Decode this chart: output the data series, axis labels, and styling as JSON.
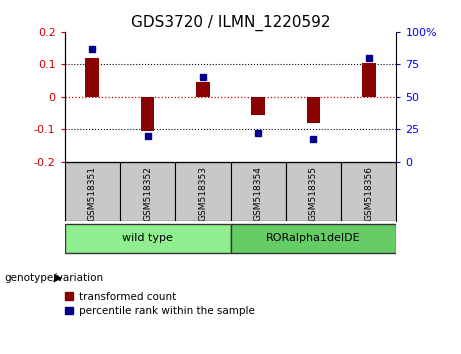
{
  "title": "GDS3720 / ILMN_1220592",
  "samples": [
    "GSM518351",
    "GSM518352",
    "GSM518353",
    "GSM518354",
    "GSM518355",
    "GSM518356"
  ],
  "bar_values": [
    0.12,
    -0.105,
    0.045,
    -0.055,
    -0.08,
    0.105
  ],
  "dot_values": [
    87,
    20,
    65,
    22,
    18,
    80
  ],
  "bar_color": "#8B0000",
  "dot_color": "#00008B",
  "ylim_left": [
    -0.2,
    0.2
  ],
  "ylim_right": [
    0,
    100
  ],
  "yticks_left": [
    -0.2,
    -0.1,
    0.0,
    0.1,
    0.2
  ],
  "yticks_right": [
    0,
    25,
    50,
    75,
    100
  ],
  "yticklabels_right": [
    "0",
    "25",
    "50",
    "75",
    "100%"
  ],
  "zero_line_color": "#CC0000",
  "dotted_line_color": "black",
  "groups": [
    {
      "label": "wild type",
      "indices": [
        0,
        1,
        2
      ],
      "color": "#90EE90"
    },
    {
      "label": "RORalpha1delDE",
      "indices": [
        3,
        4,
        5
      ],
      "color": "#66CC66"
    }
  ],
  "group_label": "genotype/variation",
  "legend_bar_label": "transformed count",
  "legend_dot_label": "percentile rank within the sample",
  "background_color": "#ffffff",
  "plot_bg_color": "#ffffff",
  "title_fontsize": 11,
  "tick_fontsize": 8,
  "bar_width": 0.25
}
